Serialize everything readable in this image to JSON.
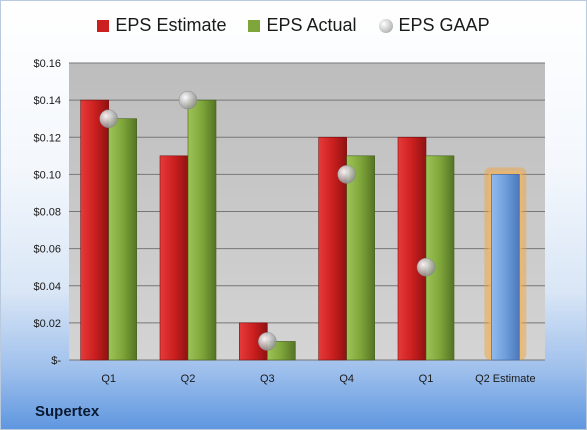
{
  "company": "Supertex",
  "legend": {
    "estimate": "EPS Estimate",
    "actual": "EPS Actual",
    "gaap": "EPS GAAP"
  },
  "colors": {
    "estimate": "#cc1f1f",
    "actual": "#7ea63a",
    "gaap": "#b8b8b8",
    "projected": "#6f9edc",
    "projected_glow": "#f2a23a",
    "plot_bg": "#c9c9c9"
  },
  "chart_data": {
    "type": "bar",
    "categories": [
      "Q1",
      "Q2",
      "Q3",
      "Q4",
      "Q1",
      "Q2 Estimate"
    ],
    "series": [
      {
        "name": "EPS Estimate",
        "values": [
          0.14,
          0.11,
          0.02,
          0.12,
          0.12,
          null
        ]
      },
      {
        "name": "EPS Actual",
        "values": [
          0.13,
          0.14,
          0.01,
          0.11,
          0.11,
          null
        ]
      },
      {
        "name": "EPS GAAP",
        "values": [
          0.13,
          0.14,
          0.01,
          0.1,
          0.05,
          null
        ]
      }
    ],
    "projected": {
      "category": "Q2 Estimate",
      "value": 0.1
    },
    "ylim": [
      0,
      0.16
    ],
    "yticks": [
      0,
      0.02,
      0.04,
      0.06,
      0.08,
      0.1,
      0.12,
      0.14,
      0.16
    ],
    "ytick_labels": [
      "$-",
      "$0.02",
      "$0.04",
      "$0.06",
      "$0.08",
      "$0.10",
      "$0.12",
      "$0.14",
      "$0.16"
    ],
    "grid": true,
    "legend_position": "top"
  }
}
